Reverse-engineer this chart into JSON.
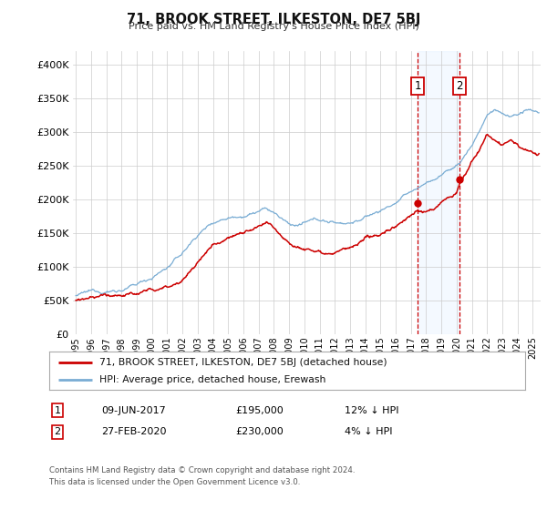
{
  "title": "71, BROOK STREET, ILKESTON, DE7 5BJ",
  "subtitle": "Price paid vs. HM Land Registry's House Price Index (HPI)",
  "legend_line1": "71, BROOK STREET, ILKESTON, DE7 5BJ (detached house)",
  "legend_line2": "HPI: Average price, detached house, Erewash",
  "sale1_date": "09-JUN-2017",
  "sale1_price": "£195,000",
  "sale1_hpi": "12% ↓ HPI",
  "sale1_year": 2017.44,
  "sale1_value": 195000,
  "sale2_date": "27-FEB-2020",
  "sale2_price": "£230,000",
  "sale2_hpi": "4% ↓ HPI",
  "sale2_year": 2020.16,
  "sale2_value": 230000,
  "footer1": "Contains HM Land Registry data © Crown copyright and database right 2024.",
  "footer2": "This data is licensed under the Open Government Licence v3.0.",
  "red_line_color": "#cc0000",
  "blue_line_color": "#7aadd4",
  "shade_color": "#ddeeff",
  "grid_color": "#cccccc",
  "background_color": "#ffffff",
  "ylim": [
    0,
    420000
  ],
  "xlim_start": 1994.8,
  "xlim_end": 2025.5,
  "xticks": [
    1995,
    1996,
    1997,
    1998,
    1999,
    2000,
    2001,
    2002,
    2003,
    2004,
    2005,
    2006,
    2007,
    2008,
    2009,
    2010,
    2011,
    2012,
    2013,
    2014,
    2015,
    2016,
    2017,
    2018,
    2019,
    2020,
    2021,
    2022,
    2023,
    2024,
    2025
  ]
}
